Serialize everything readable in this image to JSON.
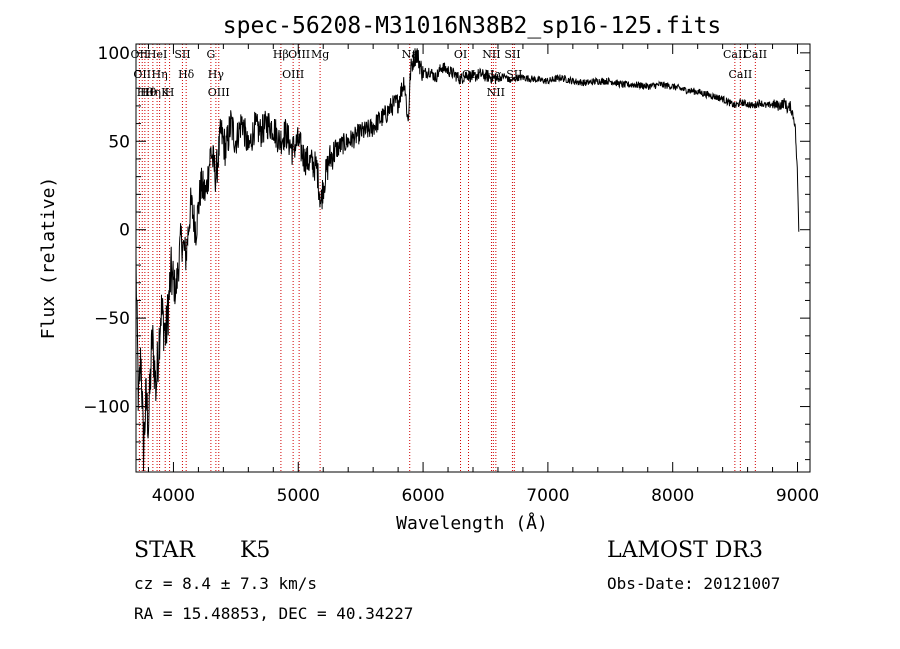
{
  "chart_data": {
    "type": "line",
    "title": "spec-56208-M31016N38B2_sp16-125.fits",
    "xlabel": "Wavelength (Å)",
    "ylabel": "Flux (relative)",
    "xlim": [
      3700,
      9100
    ],
    "ylim": [
      -137,
      105
    ],
    "xticks": [
      4000,
      5000,
      6000,
      7000,
      8000,
      9000
    ],
    "yticks": [
      -100,
      -50,
      0,
      50,
      100
    ],
    "series": [
      {
        "name": "spectrum",
        "x": [
          3700,
          3720,
          3740,
          3760,
          3780,
          3800,
          3830,
          3860,
          3900,
          3940,
          3980,
          4020,
          4060,
          4100,
          4140,
          4180,
          4220,
          4260,
          4300,
          4340,
          4380,
          4420,
          4460,
          4500,
          4550,
          4600,
          4650,
          4700,
          4750,
          4800,
          4850,
          4900,
          4950,
          5000,
          5050,
          5100,
          5150,
          5180,
          5200,
          5250,
          5300,
          5350,
          5400,
          5450,
          5500,
          5550,
          5600,
          5650,
          5700,
          5750,
          5800,
          5850,
          5880,
          5900,
          5920,
          5950,
          5980,
          6000,
          6050,
          6100,
          6150,
          6200,
          6250,
          6300,
          6350,
          6400,
          6450,
          6500,
          6550,
          6600,
          6650,
          6700,
          6750,
          6800,
          6900,
          7000,
          7100,
          7200,
          7300,
          7400,
          7500,
          7600,
          7700,
          7800,
          7900,
          8000,
          8100,
          8200,
          8300,
          8400,
          8450,
          8500,
          8550,
          8600,
          8650,
          8700,
          8750,
          8800,
          8850,
          8900,
          8920,
          8940,
          8960,
          8980,
          9000,
          9010
        ],
        "y": [
          -20,
          -100,
          -70,
          -125,
          -95,
          -110,
          -60,
          -90,
          -45,
          -60,
          -25,
          -35,
          -5,
          -15,
          15,
          0,
          25,
          20,
          45,
          30,
          55,
          45,
          60,
          50,
          62,
          45,
          58,
          55,
          60,
          58,
          50,
          55,
          45,
          50,
          40,
          38,
          35,
          15,
          25,
          40,
          45,
          48,
          50,
          52,
          55,
          56,
          58,
          62,
          65,
          70,
          72,
          85,
          60,
          90,
          96,
          100,
          92,
          88,
          90,
          86,
          92,
          90,
          88,
          85,
          88,
          86,
          88,
          87,
          86,
          85,
          87,
          84,
          86,
          86,
          85,
          84,
          86,
          84,
          83,
          84,
          84,
          82,
          82,
          81,
          82,
          81,
          79,
          78,
          76,
          74,
          72,
          70,
          72,
          71,
          70,
          72,
          70,
          71,
          70,
          72,
          68,
          70,
          66,
          60,
          30,
          0
        ]
      }
    ],
    "lines": [
      {
        "x": 3727,
        "label": "OII"
      },
      {
        "x": 3750,
        "label": "OII"
      },
      {
        "x": 3771,
        "label": "Hθ"
      },
      {
        "x": 3798,
        "label": "Hθ"
      },
      {
        "x": 3835,
        "label": "Hη"
      },
      {
        "x": 3869,
        "label": "HeI"
      },
      {
        "x": 3889,
        "label": "Hη"
      },
      {
        "x": 3934,
        "label": "K"
      },
      {
        "x": 3969,
        "label": "H"
      },
      {
        "x": 4072,
        "label": "SII"
      },
      {
        "x": 4102,
        "label": "Hδ"
      },
      {
        "x": 4300,
        "label": "G"
      },
      {
        "x": 4340,
        "label": "Hγ"
      },
      {
        "x": 4363,
        "label": "OIII"
      },
      {
        "x": 4861,
        "label": "Hβ"
      },
      {
        "x": 4959,
        "label": "OIII"
      },
      {
        "x": 5007,
        "label": "OIII"
      },
      {
        "x": 5175,
        "label": "Mg"
      },
      {
        "x": 5893,
        "label": "Na"
      },
      {
        "x": 6300,
        "label": "OI"
      },
      {
        "x": 6364,
        "label": "OI"
      },
      {
        "x": 6548,
        "label": "NII"
      },
      {
        "x": 6563,
        "label": "Hα"
      },
      {
        "x": 6583,
        "label": "NII"
      },
      {
        "x": 6716,
        "label": "SII"
      },
      {
        "x": 6731,
        "label": "SII"
      },
      {
        "x": 8498,
        "label": "CaII"
      },
      {
        "x": 8542,
        "label": "CaII"
      },
      {
        "x": 8662,
        "label": "CaII"
      }
    ]
  },
  "info": {
    "object_class": "STAR",
    "subclass": "K5",
    "redshift": "cz = 8.4 ± 7.3 km/s",
    "coords": "RA =  15.48853, DEC =  40.34227",
    "survey": "LAMOST DR3",
    "obs_date": "Obs-Date: 20121007"
  }
}
